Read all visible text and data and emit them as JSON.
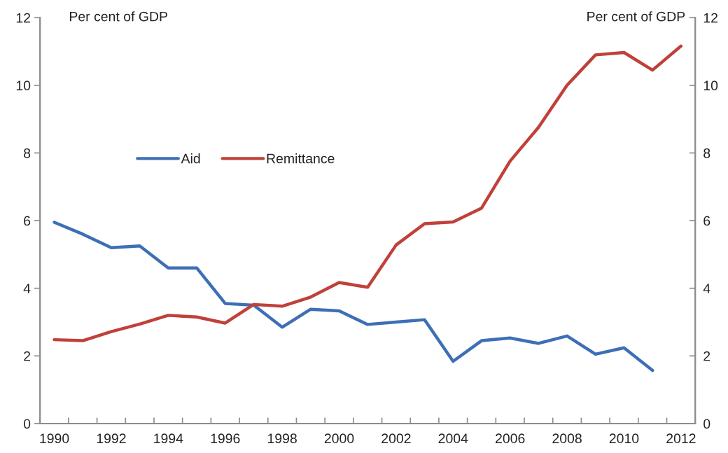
{
  "chart_data": {
    "type": "line",
    "ylabel": "Per cent of GDP",
    "y2label": "Per cent of GDP",
    "categories": [
      "1990",
      null,
      "1992",
      null,
      "1994",
      null,
      "1996",
      null,
      "1998",
      null,
      "2000",
      null,
      "2002",
      null,
      "2004",
      null,
      "2006",
      null,
      "2008",
      null,
      "2010",
      null,
      "2012"
    ],
    "series": [
      {
        "name": "Aid",
        "color": "#3d6fb6",
        "values": [
          5.95,
          5.6,
          5.2,
          5.25,
          4.6,
          4.6,
          3.55,
          3.5,
          2.85,
          3.38,
          3.33,
          2.93,
          3.0,
          3.07,
          1.84,
          2.45,
          2.53,
          2.37,
          2.59,
          2.05,
          2.24,
          1.57,
          null
        ]
      },
      {
        "name": "Remittance",
        "color": "#c0403a",
        "values": [
          2.48,
          2.45,
          2.72,
          2.94,
          3.2,
          3.15,
          2.97,
          3.52,
          3.47,
          3.74,
          4.17,
          4.03,
          5.28,
          5.91,
          5.96,
          6.37,
          7.76,
          8.76,
          10.0,
          10.9,
          10.97,
          10.45,
          11.16
        ]
      }
    ],
    "ylim": [
      0,
      12
    ],
    "yticks": [
      0,
      2,
      4,
      6,
      8,
      10,
      12
    ],
    "y2lim": [
      0,
      12
    ],
    "y2ticks": [
      0,
      2,
      4,
      6,
      8,
      10,
      12
    ],
    "legend": "top left",
    "marker": "none",
    "line_style": "solid"
  }
}
